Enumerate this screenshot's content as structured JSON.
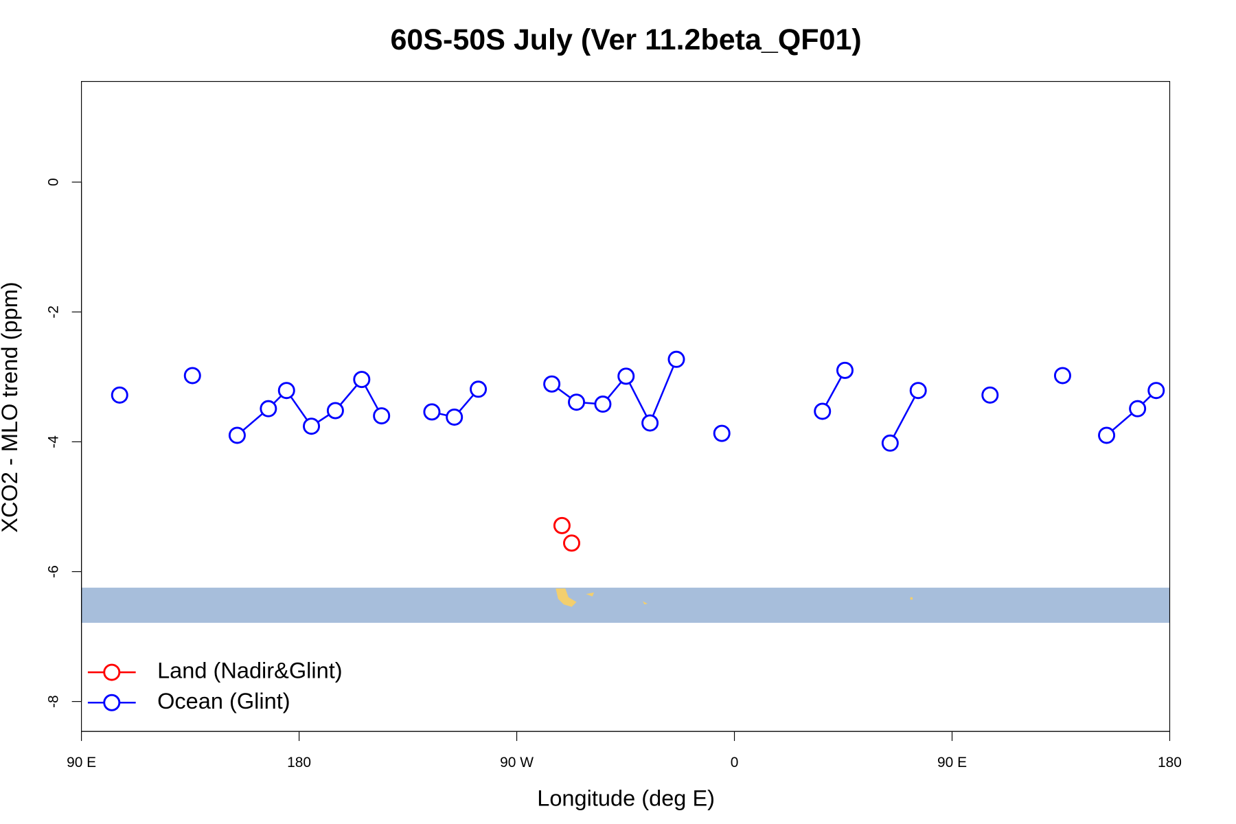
{
  "chart_data": {
    "type": "line",
    "title": "60S-50S July (Ver 11.2beta_QF01)",
    "x_label": "Longitude (deg E)",
    "y_label": "XCO2 - MLO trend (ppm)",
    "xlim": [
      90,
      540
    ],
    "ylim": [
      -8.46,
      1.55
    ],
    "xticks": [
      {
        "value": 90,
        "label": "90 E"
      },
      {
        "value": 180,
        "label": "180"
      },
      {
        "value": 270,
        "label": "90 W"
      },
      {
        "value": 360,
        "label": "0"
      },
      {
        "value": 450,
        "label": "90 E"
      },
      {
        "value": 540,
        "label": "180"
      }
    ],
    "yticks": [
      -8,
      -6,
      -4,
      -2,
      0
    ],
    "legend": "bottomleft",
    "series": [
      {
        "name": "Land (Nadir&Glint)",
        "color": "#ff0000",
        "x": [
          288.7,
          null,
          292.7
        ],
        "values": [
          -5.29,
          null,
          -5.56
        ]
      },
      {
        "name": "Ocean (Glint)",
        "color": "#0000ff",
        "x": [
          105.8,
          null,
          135.9,
          null,
          154.4,
          167.3,
          174.8,
          185.1,
          195.0,
          205.9,
          214.1,
          null,
          234.9,
          244.2,
          254.1,
          null,
          284.5,
          294.7,
          305.6,
          315.2,
          325.1,
          336.0,
          null,
          354.8,
          null,
          396.4,
          405.7,
          null,
          424.4,
          436.0,
          null,
          465.7,
          null,
          495.7,
          null,
          513.9,
          526.7,
          534.4
        ],
        "values": [
          -3.28,
          null,
          -2.98,
          null,
          -3.9,
          -3.49,
          -3.21,
          -3.76,
          -3.52,
          -3.04,
          -3.6,
          null,
          -3.54,
          -3.62,
          -3.19,
          null,
          -3.11,
          -3.39,
          -3.42,
          -2.99,
          -3.71,
          -2.73,
          null,
          -3.87,
          null,
          -3.53,
          -2.9,
          null,
          -4.02,
          -3.21,
          null,
          -3.28,
          null,
          -2.98,
          null,
          -3.9,
          -3.49,
          -3.21
        ]
      }
    ]
  }
}
